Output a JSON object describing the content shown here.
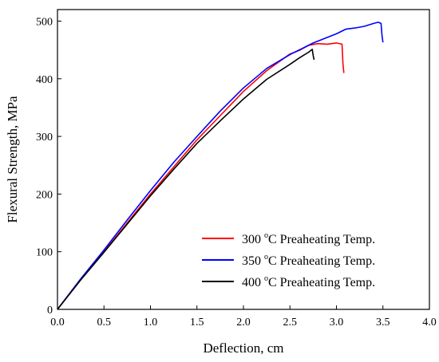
{
  "chart_data": {
    "type": "line",
    "xlabel": "Deflection, cm",
    "ylabel": "Flexural Strength, MPa",
    "xlim": [
      0,
      4.0
    ],
    "ylim": [
      0,
      520
    ],
    "xticks": [
      "0.0",
      "0.5",
      "1.0",
      "1.5",
      "2.0",
      "2.5",
      "3.0",
      "3.5",
      "4.0"
    ],
    "yticks": [
      "0",
      "100",
      "200",
      "300",
      "400",
      "500"
    ],
    "grid": false,
    "legend_position": "bottom-right",
    "series": [
      {
        "name_prefix": "300 ",
        "name_sup": "o",
        "name_suffix": "C Preaheating Temp.",
        "color": "#ff0000",
        "points": [
          [
            0.0,
            0
          ],
          [
            0.25,
            52
          ],
          [
            0.5,
            100
          ],
          [
            0.75,
            150
          ],
          [
            1.0,
            200
          ],
          [
            1.25,
            247
          ],
          [
            1.5,
            294
          ],
          [
            1.75,
            336
          ],
          [
            2.0,
            378
          ],
          [
            2.25,
            414
          ],
          [
            2.5,
            443
          ],
          [
            2.6,
            449
          ],
          [
            2.7,
            458
          ],
          [
            2.8,
            461
          ],
          [
            2.9,
            460
          ],
          [
            3.0,
            462
          ],
          [
            3.06,
            460
          ],
          [
            3.07,
            425
          ],
          [
            3.08,
            410
          ]
        ]
      },
      {
        "name_prefix": "350 ",
        "name_sup": "o",
        "name_suffix": "C Preaheating Temp.",
        "color": "#0000ff",
        "points": [
          [
            0.0,
            0
          ],
          [
            0.25,
            53
          ],
          [
            0.5,
            103
          ],
          [
            0.75,
            155
          ],
          [
            1.0,
            206
          ],
          [
            1.25,
            255
          ],
          [
            1.5,
            300
          ],
          [
            1.75,
            344
          ],
          [
            2.0,
            384
          ],
          [
            2.25,
            418
          ],
          [
            2.5,
            442
          ],
          [
            2.75,
            462
          ],
          [
            3.0,
            478
          ],
          [
            3.1,
            486
          ],
          [
            3.2,
            488
          ],
          [
            3.3,
            491
          ],
          [
            3.4,
            496
          ],
          [
            3.45,
            498
          ],
          [
            3.48,
            496
          ],
          [
            3.49,
            475
          ],
          [
            3.5,
            463
          ]
        ]
      },
      {
        "name_prefix": "400 ",
        "name_sup": "o",
        "name_suffix": "C Preaheating Temp.",
        "color": "#000000",
        "points": [
          [
            0.0,
            0
          ],
          [
            0.25,
            51
          ],
          [
            0.5,
            99
          ],
          [
            0.75,
            148
          ],
          [
            1.0,
            197
          ],
          [
            1.25,
            243
          ],
          [
            1.5,
            288
          ],
          [
            1.75,
            327
          ],
          [
            2.0,
            365
          ],
          [
            2.25,
            399
          ],
          [
            2.5,
            425
          ],
          [
            2.6,
            436
          ],
          [
            2.7,
            446
          ],
          [
            2.74,
            451
          ],
          [
            2.75,
            440
          ],
          [
            2.76,
            433
          ]
        ]
      }
    ]
  }
}
